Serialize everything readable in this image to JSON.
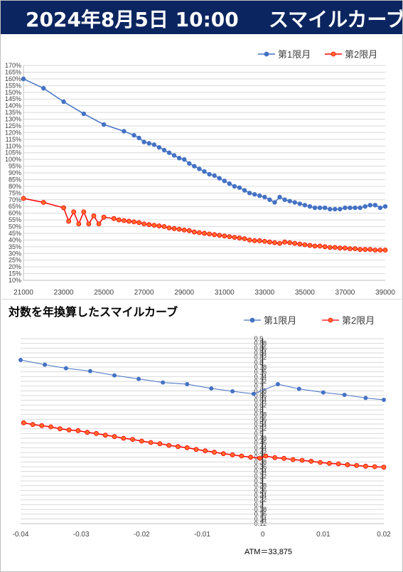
{
  "header": {
    "date": "2024年8月5日 10:00",
    "title": "スマイルカーブ"
  },
  "colors": {
    "series1": "#4472c4",
    "series2": "#ff0000",
    "series2_fill": "#ff6a2a",
    "header_bg": "#0b2560"
  },
  "chart_data": [
    {
      "type": "line",
      "title": "",
      "xlabel": "",
      "ylabel": "",
      "xlim": [
        21000,
        39000
      ],
      "ylim": [
        10,
        170
      ],
      "y_unit": "%",
      "x_ticks": [
        21000,
        23000,
        25000,
        27000,
        29000,
        31000,
        33000,
        35000,
        37000,
        39000
      ],
      "y_tick_step": 5,
      "grid": true,
      "legend": "top-right",
      "series": [
        {
          "name": "第1限月",
          "x": [
            21000,
            22000,
            23000,
            24000,
            25000,
            26000,
            26500,
            26750,
            27000,
            27250,
            27500,
            27750,
            28000,
            28250,
            28500,
            28750,
            29000,
            29250,
            29500,
            29750,
            30000,
            30250,
            30500,
            30750,
            31000,
            31250,
            31500,
            31750,
            32000,
            32250,
            32500,
            32750,
            33000,
            33250,
            33500,
            33750,
            34000,
            34250,
            34500,
            34750,
            35000,
            35250,
            35500,
            35750,
            36000,
            36250,
            36500,
            36750,
            37000,
            37250,
            37500,
            37750,
            38000,
            38250,
            38500,
            38750,
            39000
          ],
          "values": [
            160,
            153,
            143,
            134,
            126,
            121,
            118,
            116,
            113,
            112,
            111,
            109,
            107,
            105,
            103,
            101,
            100,
            97,
            95,
            93,
            91,
            89,
            88,
            86,
            84,
            82,
            80,
            79,
            77,
            75,
            74,
            73,
            72,
            70,
            68,
            72,
            70,
            69,
            68,
            67,
            66,
            65,
            64,
            64,
            64,
            63,
            63,
            63,
            64,
            64,
            64,
            64,
            65,
            66,
            66,
            64,
            65
          ]
        },
        {
          "name": "第2限月",
          "x": [
            21000,
            22000,
            23000,
            23250,
            23500,
            23750,
            24000,
            24250,
            24500,
            24750,
            25000,
            25500,
            25750,
            26000,
            26250,
            26500,
            26750,
            27000,
            27250,
            27500,
            27750,
            28000,
            28250,
            28500,
            28750,
            29000,
            29250,
            29500,
            29750,
            30000,
            30250,
            30500,
            30750,
            31000,
            31250,
            31500,
            31750,
            32000,
            32250,
            32500,
            32750,
            33000,
            33250,
            33500,
            33750,
            34000,
            34250,
            34500,
            34750,
            35000,
            35250,
            35500,
            35750,
            36000,
            36250,
            36500,
            36750,
            37000,
            37250,
            37500,
            37750,
            38000,
            38250,
            38500,
            38750,
            39000
          ],
          "values": [
            71,
            68,
            64,
            54,
            61,
            52,
            61,
            52,
            58,
            52,
            57,
            56,
            55,
            54.5,
            54,
            53.5,
            53,
            52,
            51.5,
            51,
            50.5,
            50,
            49,
            48.5,
            48,
            47.5,
            47,
            46,
            45.5,
            45,
            44.5,
            44,
            43.5,
            43,
            42.5,
            42,
            41.5,
            41,
            40,
            39.5,
            39.5,
            39,
            38.5,
            38,
            37.5,
            38.5,
            38,
            37.5,
            37,
            36.5,
            36,
            35.5,
            35.5,
            35,
            34.5,
            34.5,
            34,
            34,
            33.5,
            33.5,
            33,
            33,
            33,
            32.5,
            32.5,
            32.5
          ]
        }
      ]
    },
    {
      "type": "line",
      "title": "対数を年換算したスマイルカーブ",
      "xlabel": "",
      "ylabel": "",
      "xlim": [
        -0.04,
        0.02
      ],
      "ylim": [
        0.12,
        0.9
      ],
      "x_ticks": [
        -0.04,
        -0.03,
        -0.02,
        -0.01,
        0,
        0.01,
        0.02
      ],
      "y_tick_step": 0.02,
      "grid": true,
      "legend": "top-right",
      "annotation": "ATM＝33,875",
      "series": [
        {
          "name": "第1限月",
          "x": [
            -0.04,
            -0.036,
            -0.0325,
            -0.0285,
            -0.0245,
            -0.0205,
            -0.0165,
            -0.0125,
            -0.0085,
            -0.005,
            -0.0015,
            0.0025,
            0.006,
            0.01,
            0.0135,
            0.017,
            0.02
          ],
          "values": [
            0.81,
            0.79,
            0.775,
            0.763,
            0.745,
            0.73,
            0.715,
            0.708,
            0.69,
            0.678,
            0.667,
            0.708,
            0.688,
            0.673,
            0.663,
            0.65,
            0.642
          ]
        },
        {
          "name": "第2限月",
          "x": [
            -0.0395,
            -0.038,
            -0.0365,
            -0.035,
            -0.0335,
            -0.032,
            -0.0305,
            -0.029,
            -0.0275,
            -0.026,
            -0.0245,
            -0.023,
            -0.0215,
            -0.02,
            -0.0185,
            -0.017,
            -0.0155,
            -0.014,
            -0.0125,
            -0.011,
            -0.0095,
            -0.008,
            -0.0065,
            -0.005,
            -0.0035,
            -0.002,
            -0.0005,
            0.0005,
            0.002,
            0.0035,
            0.005,
            0.0065,
            0.008,
            0.0095,
            0.011,
            0.0125,
            0.014,
            0.0155,
            0.017,
            0.0185,
            0.02
          ],
          "values": [
            0.545,
            0.538,
            0.533,
            0.528,
            0.52,
            0.515,
            0.512,
            0.505,
            0.5,
            0.493,
            0.487,
            0.48,
            0.475,
            0.468,
            0.462,
            0.457,
            0.45,
            0.445,
            0.44,
            0.433,
            0.427,
            0.421,
            0.415,
            0.41,
            0.405,
            0.4,
            0.396,
            0.405,
            0.398,
            0.395,
            0.39,
            0.387,
            0.383,
            0.378,
            0.374,
            0.372,
            0.368,
            0.365,
            0.362,
            0.36,
            0.358
          ]
        }
      ]
    }
  ]
}
